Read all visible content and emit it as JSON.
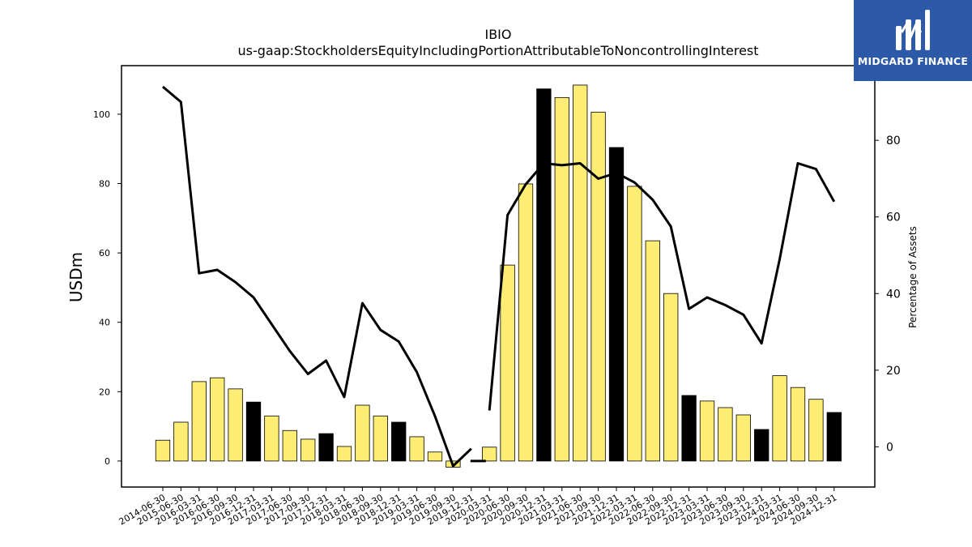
{
  "chart_data": {
    "type": "bar",
    "title": "IBIO",
    "subtitle": "us-gaap:StockholdersEquityIncludingPortionAttributableToNoncontrollingInterest",
    "ylabel": "USDm",
    "y2label": "Percentage of Assets",
    "ylim": [
      -7.5,
      114
    ],
    "y2lim": [
      -10.5,
      99.5
    ],
    "yticks": [
      0,
      20,
      40,
      60,
      80,
      100
    ],
    "y2ticks": [
      0,
      20,
      40,
      60,
      80
    ],
    "categories": [
      "2014-06-30",
      "2015-06-30",
      "2016-03-31",
      "2016-06-30",
      "2016-09-30",
      "2016-12-31",
      "2017-03-31",
      "2017-06-30",
      "2017-09-30",
      "2017-12-31",
      "2018-03-31",
      "2018-06-30",
      "2018-09-30",
      "2018-12-31",
      "2019-03-31",
      "2019-06-30",
      "2019-09-30",
      "2019-12-31",
      "2020-03-31",
      "2020-06-30",
      "2020-09-30",
      "2020-12-31",
      "2021-03-31",
      "2021-06-30",
      "2021-09-30",
      "2021-12-31",
      "2022-03-31",
      "2022-06-30",
      "2022-09-30",
      "2022-12-31",
      "2023-03-31",
      "2023-06-30",
      "2023-09-30",
      "2023-12-31",
      "2024-03-31",
      "2024-06-30",
      "2024-09-30",
      "2024-12-31"
    ],
    "series": [
      {
        "kind": "bar",
        "values": [
          6.0,
          11.2,
          22.9,
          24.0,
          20.8,
          17.0,
          13.0,
          8.8,
          6.3,
          7.9,
          4.2,
          16.1,
          13.0,
          11.2,
          7.0,
          2.6,
          -1.8,
          null,
          4.0,
          56.5,
          79.9,
          107.3,
          104.8,
          108.4,
          100.6,
          90.4,
          79.2,
          63.5,
          48.3,
          18.9,
          17.3,
          15.4,
          13.3,
          9.1,
          24.6,
          21.2,
          17.8,
          14.0
        ],
        "highlight": [
          false,
          false,
          false,
          false,
          false,
          true,
          false,
          false,
          false,
          true,
          false,
          false,
          false,
          true,
          false,
          false,
          false,
          false,
          false,
          false,
          false,
          true,
          false,
          false,
          false,
          true,
          false,
          false,
          false,
          true,
          false,
          false,
          false,
          true,
          false,
          false,
          false,
          true
        ]
      },
      {
        "kind": "line",
        "axis": "right",
        "values": [
          94.0,
          90.0,
          45.3,
          46.2,
          43.0,
          39.0,
          32.0,
          25.0,
          19.0,
          22.5,
          13.0,
          37.5,
          30.5,
          27.5,
          19.5,
          8.0,
          -5.0,
          -0.5,
          9.5,
          60.5,
          68.5,
          74.0,
          73.5,
          74.0,
          70.0,
          71.5,
          69.0,
          64.5,
          57.5,
          36.0,
          39.0,
          37.0,
          34.5,
          27.0,
          49.0,
          74.0,
          72.5,
          64.0
        ],
        "gap_after_index": 17
      }
    ],
    "colors": {
      "bar": "#fded74",
      "bar_highlight": "#000000",
      "bar_edge": "#000000",
      "line": "#000000"
    },
    "grid": false,
    "legend": "none"
  },
  "logo": {
    "text": "MIDGARD FINANCE",
    "background": "#2d5aa8"
  }
}
